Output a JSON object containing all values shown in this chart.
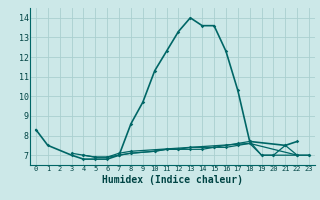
{
  "bg_color": "#cce8e8",
  "grid_color": "#aacfcf",
  "line_color": "#006666",
  "lines": [
    {
      "x": [
        0,
        1,
        3,
        4,
        5,
        6,
        7,
        8,
        9,
        10,
        11,
        12,
        13,
        14,
        15,
        16,
        17,
        18,
        21,
        22
      ],
      "y": [
        8.3,
        7.5,
        7.0,
        6.8,
        6.8,
        6.8,
        7.0,
        8.6,
        9.7,
        11.3,
        12.3,
        13.3,
        14.0,
        13.6,
        13.6,
        12.3,
        10.3,
        7.7,
        7.5,
        7.7
      ]
    },
    {
      "x": [
        3,
        4,
        5,
        6,
        7,
        8,
        18,
        22
      ],
      "y": [
        7.1,
        7.0,
        6.9,
        6.9,
        7.1,
        7.2,
        7.6,
        7.0
      ]
    },
    {
      "x": [
        4,
        5,
        6,
        7,
        8,
        10,
        11,
        12,
        13,
        14,
        15,
        16,
        17,
        18,
        19,
        20,
        21,
        22,
        23
      ],
      "y": [
        7.0,
        6.9,
        6.9,
        7.0,
        7.1,
        7.2,
        7.3,
        7.3,
        7.3,
        7.3,
        7.4,
        7.4,
        7.5,
        7.6,
        7.0,
        7.0,
        7.5,
        7.0,
        7.0
      ]
    },
    {
      "x": [
        7,
        8,
        10,
        11,
        12,
        13,
        14,
        15,
        16,
        17,
        18,
        19,
        20,
        22,
        23
      ],
      "y": [
        7.0,
        7.1,
        7.2,
        7.3,
        7.3,
        7.4,
        7.4,
        7.4,
        7.5,
        7.6,
        7.7,
        7.0,
        7.0,
        7.0,
        7.0
      ]
    }
  ],
  "xlabel": "Humidex (Indice chaleur)",
  "xlim": [
    -0.5,
    23.5
  ],
  "ylim": [
    6.5,
    14.5
  ],
  "yticks": [
    7,
    8,
    9,
    10,
    11,
    12,
    13,
    14
  ],
  "xticks": [
    0,
    1,
    2,
    3,
    4,
    5,
    6,
    7,
    8,
    9,
    10,
    11,
    12,
    13,
    14,
    15,
    16,
    17,
    18,
    19,
    20,
    21,
    22,
    23
  ],
  "ylabel_fontsize": 6.0,
  "xlabel_fontsize": 7.0
}
